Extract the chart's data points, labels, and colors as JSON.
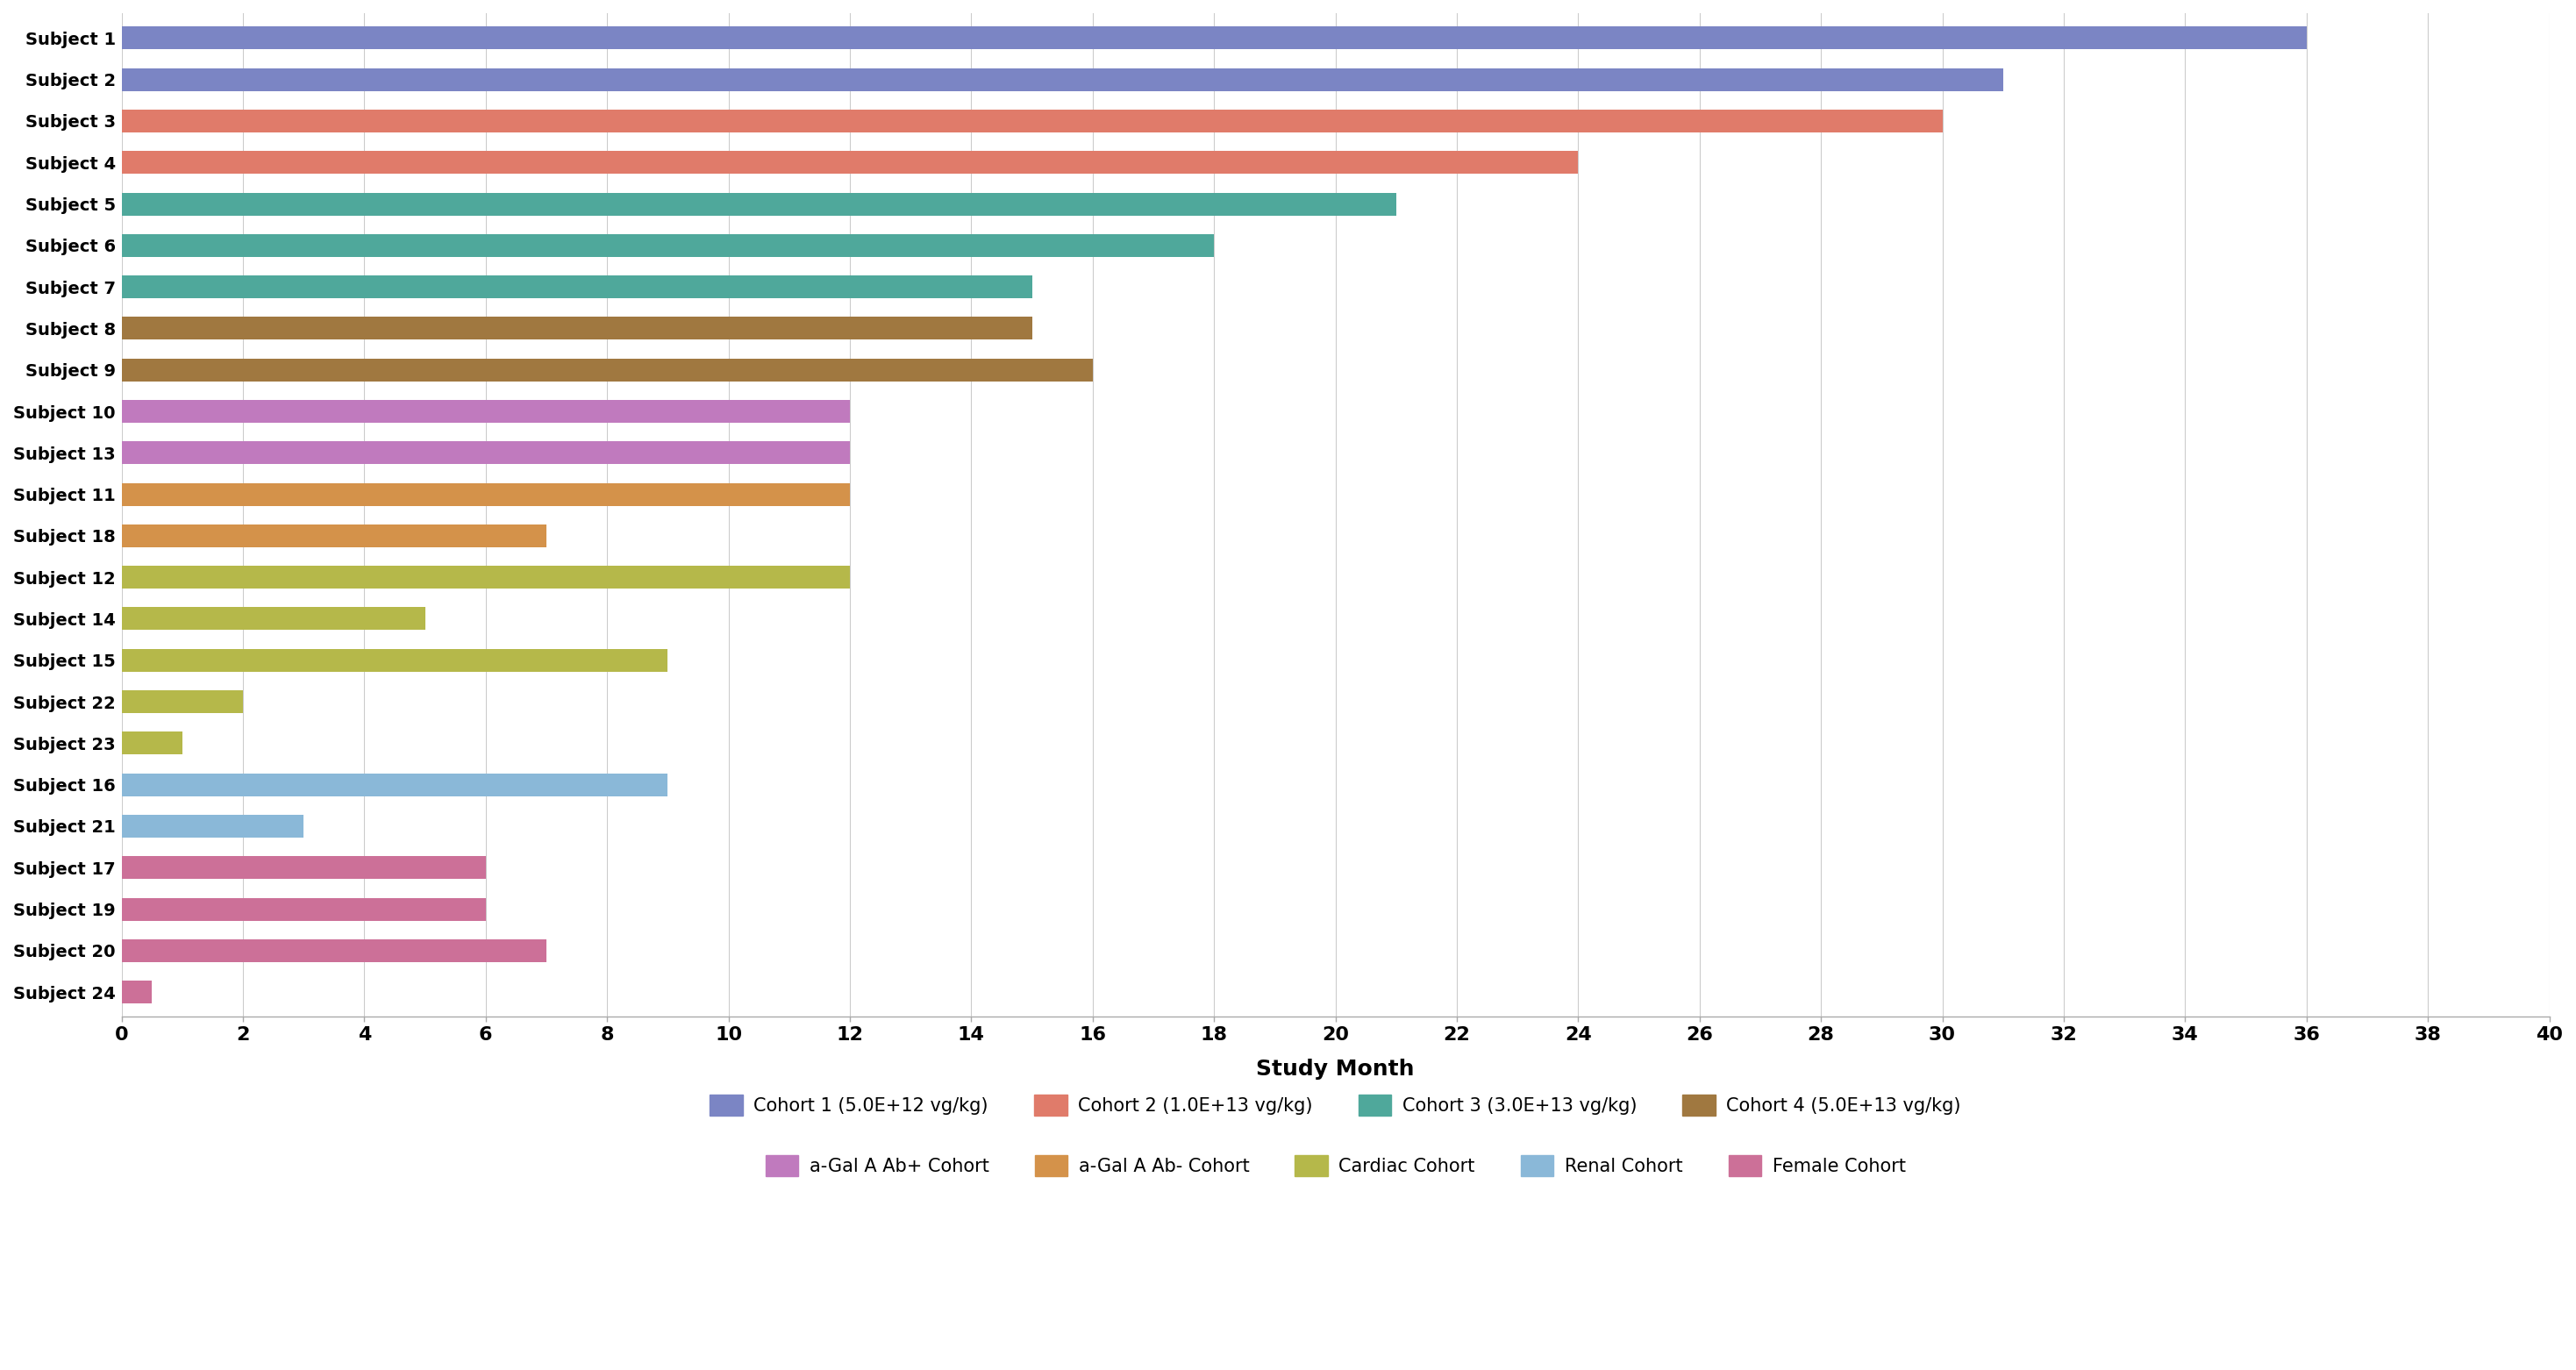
{
  "subjects": [
    "Subject 1",
    "Subject 2",
    "Subject 3",
    "Subject 4",
    "Subject 5",
    "Subject 6",
    "Subject 7",
    "Subject 8",
    "Subject 9",
    "Subject 10",
    "Subject 13",
    "Subject 11",
    "Subject 18",
    "Subject 12",
    "Subject 14",
    "Subject 15",
    "Subject 22",
    "Subject 23",
    "Subject 16",
    "Subject 21",
    "Subject 17",
    "Subject 19",
    "Subject 20",
    "Subject 24"
  ],
  "values": [
    36,
    31,
    30,
    24,
    21,
    18,
    15,
    15,
    16,
    12,
    12,
    12,
    7,
    12,
    5,
    9,
    2,
    1,
    9,
    3,
    6,
    6,
    7,
    0.5
  ],
  "colors": [
    "#7b85c4",
    "#7b85c4",
    "#e07b6a",
    "#e07b6a",
    "#4fa89b",
    "#4fa89b",
    "#4fa89b",
    "#a07840",
    "#a07840",
    "#c07abe",
    "#c07abe",
    "#d4924a",
    "#d4924a",
    "#b5b84a",
    "#b5b84a",
    "#b5b84a",
    "#b5b84a",
    "#b5b84a",
    "#8ab8d8",
    "#8ab8d8",
    "#cc7098",
    "#cc7098",
    "#cc7098",
    "#cc7098"
  ],
  "xlabel": "Study Month",
  "xlim": [
    0,
    40
  ],
  "xticks": [
    0,
    2,
    4,
    6,
    8,
    10,
    12,
    14,
    16,
    18,
    20,
    22,
    24,
    26,
    28,
    30,
    32,
    34,
    36,
    38,
    40
  ],
  "legend_entries": [
    {
      "label": "Cohort 1 (5.0E+12 vg/kg)",
      "color": "#7b85c4"
    },
    {
      "label": "Cohort 2 (1.0E+13 vg/kg)",
      "color": "#e07b6a"
    },
    {
      "label": "Cohort 3 (3.0E+13 vg/kg)",
      "color": "#4fa89b"
    },
    {
      "label": "Cohort 4 (5.0E+13 vg/kg)",
      "color": "#a07840"
    },
    {
      "label": "a-Gal A Ab+ Cohort",
      "color": "#c07abe"
    },
    {
      "label": "a-Gal A Ab- Cohort",
      "color": "#d4924a"
    },
    {
      "label": "Cardiac Cohort",
      "color": "#b5b84a"
    },
    {
      "label": "Renal Cohort",
      "color": "#8ab8d8"
    },
    {
      "label": "Female Cohort",
      "color": "#cc7098"
    }
  ],
  "bar_height": 0.55,
  "background_color": "#ffffff",
  "grid_color": "#cccccc",
  "ytick_fontsize": 14,
  "xtick_fontsize": 16,
  "xlabel_fontsize": 18,
  "legend_fontsize": 15
}
